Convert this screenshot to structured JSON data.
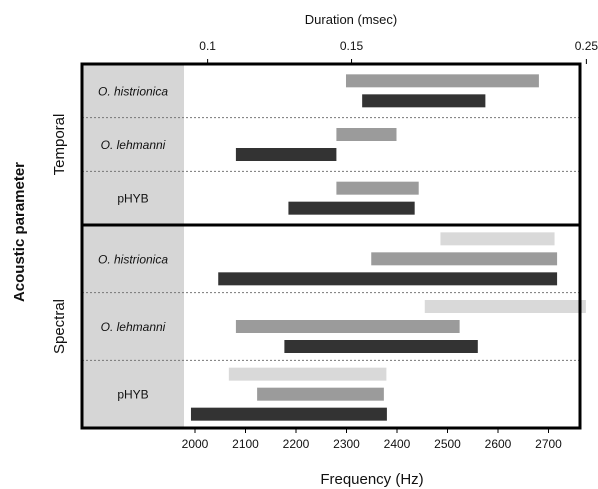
{
  "chart_data": {
    "type": "range-bar",
    "top_axis": {
      "label": "Duration (msec)",
      "ticks": [
        {
          "label": "0.1",
          "frequency_equivalent": 2025
        },
        {
          "label": "0.15",
          "frequency_equivalent": 2310
        },
        {
          "label": "0.25",
          "frequency_equivalent": 2775
        }
      ]
    },
    "x_axis": {
      "label": "Frequency (Hz)",
      "range": [
        1910,
        2775
      ],
      "ticks": [
        2000,
        2100,
        2200,
        2300,
        2400,
        2500,
        2600,
        2700
      ]
    },
    "y_axis_label": "Acoustic parameter",
    "groups": [
      {
        "name": "Temporal",
        "rows": [
          {
            "label": "O. histrionica",
            "italic": true,
            "bars": [
              {
                "tone": "medium",
                "start": 2299,
                "end": 2681
              },
              {
                "tone": "dark",
                "start": 2331,
                "end": 2575
              }
            ]
          },
          {
            "label": "O. lehmanni",
            "italic": true,
            "bars": [
              {
                "tone": "medium",
                "start": 2280,
                "end": 2399
              },
              {
                "tone": "dark",
                "start": 2081,
                "end": 2280
              }
            ]
          },
          {
            "label": "pHYB",
            "italic": false,
            "bars": [
              {
                "tone": "medium",
                "start": 2280,
                "end": 2443
              },
              {
                "tone": "dark",
                "start": 2185,
                "end": 2435
              }
            ]
          }
        ]
      },
      {
        "name": "Spectral",
        "rows": [
          {
            "label": "O. histrionica",
            "italic": true,
            "bars": [
              {
                "tone": "light",
                "start": 2486,
                "end": 2712
              },
              {
                "tone": "medium",
                "start": 2349,
                "end": 2717
              },
              {
                "tone": "dark",
                "start": 2046,
                "end": 2717
              }
            ]
          },
          {
            "label": "O. lehmanni",
            "italic": true,
            "bars": [
              {
                "tone": "light",
                "start": 2455,
                "end": 2774
              },
              {
                "tone": "medium",
                "start": 2081,
                "end": 2524
              },
              {
                "tone": "dark",
                "start": 2177,
                "end": 2560
              }
            ]
          },
          {
            "label": "pHYB",
            "italic": false,
            "bars": [
              {
                "tone": "light",
                "start": 2067,
                "end": 2379
              },
              {
                "tone": "medium",
                "start": 2123,
                "end": 2374
              },
              {
                "tone": "dark",
                "start": 1992,
                "end": 2380
              }
            ]
          }
        ]
      }
    ],
    "colors": {
      "light": "#d9d9d9",
      "medium": "#9b9b9b",
      "dark": "#333333",
      "label_panel": "#d6d6d6"
    }
  }
}
